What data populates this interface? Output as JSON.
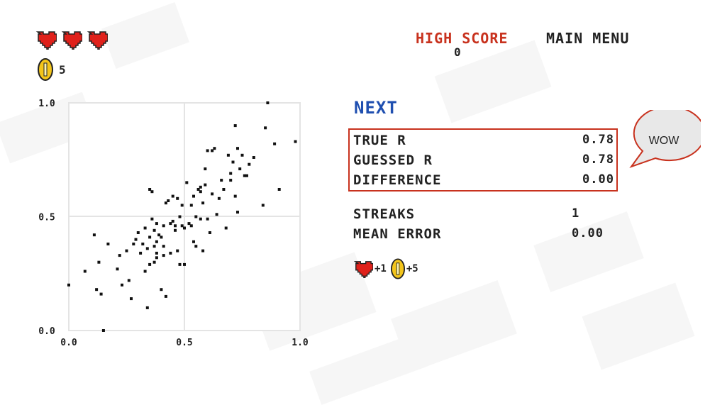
{
  "status": {
    "lives": 3,
    "coin_count": "5",
    "high_score_label": "HIGH SCORE",
    "high_score_value": "0",
    "main_menu_label": "MAIN MENU"
  },
  "panel": {
    "next_label": "NEXT",
    "results": [
      {
        "label": "TRUE R",
        "value": "0.78"
      },
      {
        "label": "GUESSED R",
        "value": "0.78"
      },
      {
        "label": "DIFFERENCE",
        "value": "0.00"
      }
    ],
    "stats": [
      {
        "label": "STREAKS",
        "value": "1"
      },
      {
        "label": "MEAN ERROR",
        "value": "0.00"
      }
    ],
    "speech_text": "WOW",
    "reward_lives": "+1",
    "reward_coins": "+5"
  },
  "colors": {
    "heart": "#e0211b",
    "coin": "#f3c51b",
    "accent_red": "#c8321e",
    "accent_blue": "#1f4fb0"
  },
  "chart_data": {
    "type": "scatter",
    "xlim": [
      0.0,
      1.0
    ],
    "ylim": [
      0.0,
      1.0
    ],
    "x_ticks": [
      "0.0",
      "0.5",
      "1.0"
    ],
    "y_ticks": [
      "0.0",
      "0.5",
      "1.0"
    ],
    "grid": true,
    "points": [
      [
        0.0,
        0.2
      ],
      [
        0.07,
        0.26
      ],
      [
        0.11,
        0.42
      ],
      [
        0.12,
        0.18
      ],
      [
        0.13,
        0.3
      ],
      [
        0.14,
        0.16
      ],
      [
        0.15,
        0.0
      ],
      [
        0.17,
        0.38
      ],
      [
        0.21,
        0.27
      ],
      [
        0.22,
        0.33
      ],
      [
        0.23,
        0.2
      ],
      [
        0.25,
        0.35
      ],
      [
        0.26,
        0.22
      ],
      [
        0.27,
        0.14
      ],
      [
        0.28,
        0.38
      ],
      [
        0.29,
        0.4
      ],
      [
        0.3,
        0.43
      ],
      [
        0.31,
        0.34
      ],
      [
        0.32,
        0.38
      ],
      [
        0.33,
        0.26
      ],
      [
        0.33,
        0.45
      ],
      [
        0.34,
        0.1
      ],
      [
        0.34,
        0.36
      ],
      [
        0.35,
        0.29
      ],
      [
        0.35,
        0.41
      ],
      [
        0.35,
        0.62
      ],
      [
        0.36,
        0.49
      ],
      [
        0.36,
        0.61
      ],
      [
        0.37,
        0.44
      ],
      [
        0.38,
        0.39
      ],
      [
        0.39,
        0.42
      ],
      [
        0.38,
        0.34
      ],
      [
        0.37,
        0.37
      ],
      [
        0.38,
        0.47
      ],
      [
        0.38,
        0.32
      ],
      [
        0.37,
        0.3
      ],
      [
        0.4,
        0.18
      ],
      [
        0.4,
        0.41
      ],
      [
        0.41,
        0.37
      ],
      [
        0.41,
        0.46
      ],
      [
        0.41,
        0.33
      ],
      [
        0.42,
        0.15
      ],
      [
        0.42,
        0.56
      ],
      [
        0.43,
        0.57
      ],
      [
        0.44,
        0.34
      ],
      [
        0.44,
        0.47
      ],
      [
        0.45,
        0.48
      ],
      [
        0.45,
        0.59
      ],
      [
        0.46,
        0.44
      ],
      [
        0.46,
        0.46
      ],
      [
        0.47,
        0.58
      ],
      [
        0.47,
        0.35
      ],
      [
        0.48,
        0.29
      ],
      [
        0.48,
        0.5
      ],
      [
        0.49,
        0.55
      ],
      [
        0.49,
        0.46
      ],
      [
        0.5,
        0.45
      ],
      [
        0.5,
        0.29
      ],
      [
        0.51,
        0.65
      ],
      [
        0.52,
        0.47
      ],
      [
        0.53,
        0.46
      ],
      [
        0.53,
        0.55
      ],
      [
        0.54,
        0.39
      ],
      [
        0.54,
        0.59
      ],
      [
        0.55,
        0.37
      ],
      [
        0.55,
        0.5
      ],
      [
        0.56,
        0.62
      ],
      [
        0.57,
        0.49
      ],
      [
        0.57,
        0.61
      ],
      [
        0.57,
        0.63
      ],
      [
        0.58,
        0.35
      ],
      [
        0.58,
        0.56
      ],
      [
        0.59,
        0.71
      ],
      [
        0.59,
        0.64
      ],
      [
        0.6,
        0.49
      ],
      [
        0.6,
        0.79
      ],
      [
        0.61,
        0.43
      ],
      [
        0.62,
        0.79
      ],
      [
        0.62,
        0.6
      ],
      [
        0.63,
        0.8
      ],
      [
        0.64,
        0.51
      ],
      [
        0.65,
        0.58
      ],
      [
        0.66,
        0.66
      ],
      [
        0.67,
        0.62
      ],
      [
        0.68,
        0.45
      ],
      [
        0.69,
        0.77
      ],
      [
        0.7,
        0.69
      ],
      [
        0.7,
        0.66
      ],
      [
        0.71,
        0.74
      ],
      [
        0.72,
        0.9
      ],
      [
        0.72,
        0.59
      ],
      [
        0.73,
        0.52
      ],
      [
        0.73,
        0.8
      ],
      [
        0.74,
        0.71
      ],
      [
        0.75,
        0.77
      ],
      [
        0.76,
        0.68
      ],
      [
        0.77,
        0.68
      ],
      [
        0.78,
        0.73
      ],
      [
        0.8,
        0.76
      ],
      [
        0.84,
        0.55
      ],
      [
        0.85,
        0.89
      ],
      [
        0.86,
        1.0
      ],
      [
        0.89,
        0.82
      ],
      [
        0.91,
        0.62
      ],
      [
        0.98,
        0.83
      ]
    ]
  }
}
